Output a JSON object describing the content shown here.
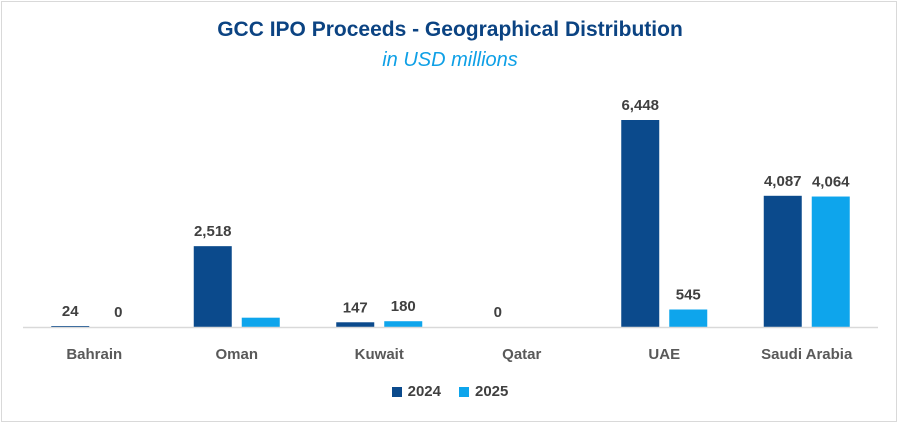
{
  "chart_data": {
    "type": "bar",
    "title": "GCC IPO Proceeds - Geographical Distribution",
    "subtitle": "in USD millions",
    "xlabel": "",
    "ylabel": "",
    "ylim": [
      0,
      7000
    ],
    "grid": false,
    "legend_position": "bottom",
    "categories": [
      "Bahrain",
      "Oman",
      "Kuwait",
      "Qatar",
      "UAE",
      "Saudi Arabia"
    ],
    "series": [
      {
        "name": "2024",
        "color": "#0b4a8c",
        "values": [
          24,
          2518,
          147,
          0,
          6448,
          4087
        ],
        "labels": [
          "24",
          "2,518",
          "147",
          "0",
          "6,448",
          "4,087"
        ]
      },
      {
        "name": "2025",
        "color": "#0ea5ec",
        "values": [
          0,
          290,
          180,
          null,
          545,
          4064
        ],
        "labels": [
          "0",
          "",
          "180",
          "",
          "545",
          "4,064"
        ]
      }
    ]
  }
}
